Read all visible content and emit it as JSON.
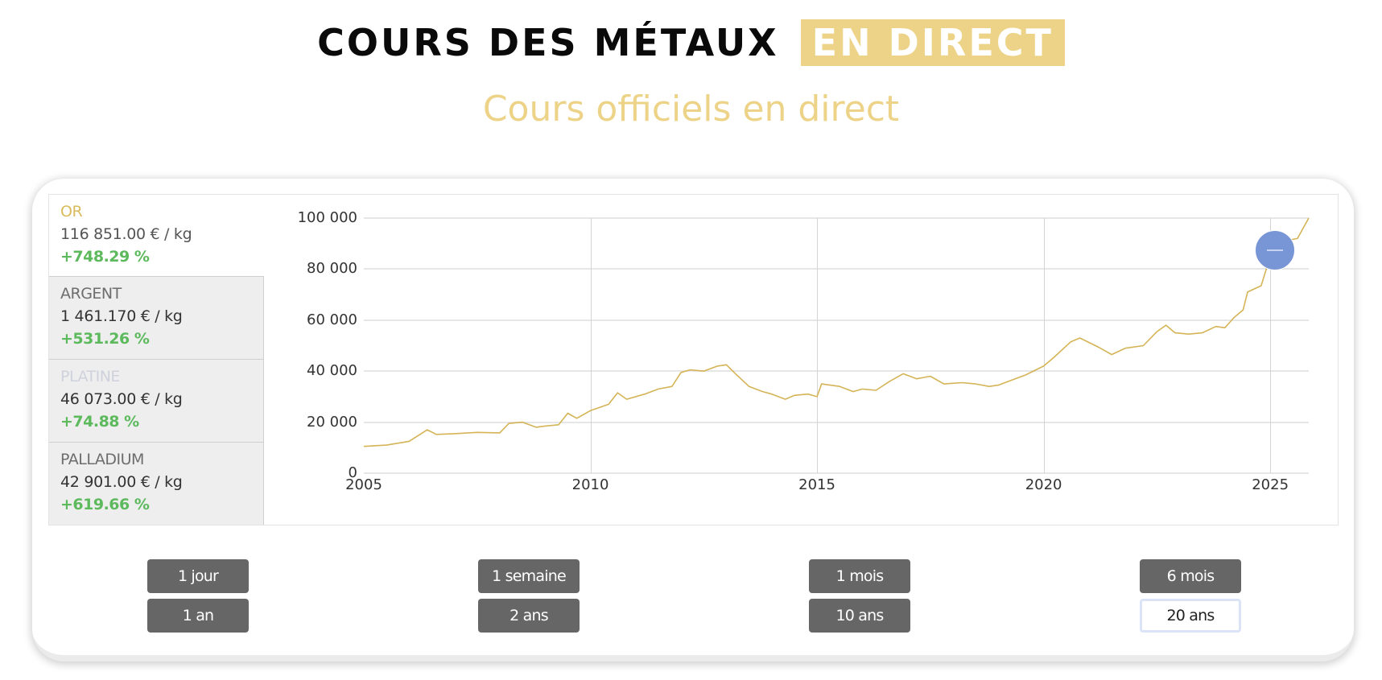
{
  "header": {
    "title_main": "COURS DES MÉTAUX",
    "title_highlight": "EN DIRECT",
    "subtitle": "Cours officiels en direct"
  },
  "colors": {
    "accent_gold": "#edd388",
    "line_gold": "#d4b456",
    "positive_green": "#5cb95c",
    "button_gray": "#666666",
    "marker_blue": "#7895d6"
  },
  "metals": [
    {
      "name": "OR",
      "price": "116 851.00 € / kg",
      "change": "+748.29 %",
      "active": true
    },
    {
      "name": "ARGENT",
      "price": "1 461.170 € / kg",
      "change": "+531.26 %",
      "active": false
    },
    {
      "name": "PLATINE",
      "price": "46 073.00 € / kg",
      "change": "+74.88 %",
      "active": false
    },
    {
      "name": "PALLADIUM",
      "price": "42 901.00 € / kg",
      "change": "+619.66 %",
      "active": false
    }
  ],
  "periods": [
    {
      "label": "1 jour",
      "selected": false
    },
    {
      "label": "1 semaine",
      "selected": false
    },
    {
      "label": "1 mois",
      "selected": false
    },
    {
      "label": "6 mois",
      "selected": false
    },
    {
      "label": "1 an",
      "selected": false
    },
    {
      "label": "2 ans",
      "selected": false
    },
    {
      "label": "10 ans",
      "selected": false
    },
    {
      "label": "20 ans",
      "selected": true
    }
  ],
  "chart_data": {
    "type": "line",
    "title": "",
    "xlabel": "",
    "ylabel": "",
    "series": [
      {
        "name": "OR",
        "x": [
          2005.0,
          2005.5,
          2006.0,
          2006.4,
          2006.6,
          2007.0,
          2007.5,
          2008.0,
          2008.2,
          2008.5,
          2008.8,
          2009.0,
          2009.3,
          2009.5,
          2009.7,
          2010.0,
          2010.4,
          2010.6,
          2010.8,
          2011.2,
          2011.5,
          2011.8,
          2012.0,
          2012.2,
          2012.5,
          2012.8,
          2013.0,
          2013.2,
          2013.5,
          2013.8,
          2014.0,
          2014.3,
          2014.5,
          2014.8,
          2015.0,
          2015.1,
          2015.5,
          2015.8,
          2016.0,
          2016.3,
          2016.6,
          2016.9,
          2017.2,
          2017.5,
          2017.8,
          2018.2,
          2018.5,
          2018.8,
          2019.0,
          2019.3,
          2019.6,
          2020.0,
          2020.2,
          2020.6,
          2020.8,
          2021.2,
          2021.5,
          2021.8,
          2022.2,
          2022.5,
          2022.7,
          2022.9,
          2023.2,
          2023.5,
          2023.8,
          2024.0,
          2024.2,
          2024.4,
          2024.5,
          2024.8,
          2025.0,
          2025.3,
          2025.6,
          2025.85
        ],
        "values": [
          10500,
          11000,
          12500,
          17000,
          15200,
          15500,
          16000,
          15800,
          19500,
          20000,
          18000,
          18500,
          19000,
          23500,
          21500,
          24500,
          27000,
          31500,
          29000,
          31000,
          33000,
          34000,
          39500,
          40500,
          40000,
          42000,
          42500,
          39000,
          34000,
          32000,
          31000,
          29000,
          30500,
          31000,
          30000,
          35000,
          34000,
          32000,
          33000,
          32500,
          36000,
          39000,
          37000,
          38000,
          35000,
          35500,
          35000,
          34000,
          34500,
          36500,
          38500,
          42000,
          45000,
          51500,
          53000,
          49500,
          46500,
          49000,
          50000,
          55500,
          58000,
          55000,
          54500,
          55000,
          57500,
          57000,
          61000,
          64000,
          71000,
          73500,
          85000,
          91000,
          92000,
          100000
        ]
      }
    ],
    "x_ticks": [
      "2005",
      "2010",
      "2015",
      "2020",
      "2025"
    ],
    "y_ticks": [
      "0",
      "20 000",
      "40 000",
      "60 000",
      "80 000",
      "100 000"
    ],
    "xlim": [
      2005,
      2025.85
    ],
    "ylim": [
      0,
      100000
    ],
    "grid": true,
    "legend": "none",
    "marker": {
      "x": 2025.1,
      "y": 87500,
      "icon": "minus-icon"
    }
  }
}
